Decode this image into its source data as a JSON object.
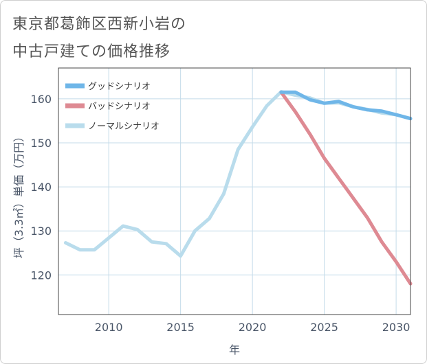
{
  "title": {
    "line1": "東京都葛飾区西新小岩の",
    "line2": "中古戸建ての価格推移"
  },
  "colors": {
    "good": "#6fb6e8",
    "bad": "#de8a93",
    "normal": "#b9dcec",
    "grid": "#c4dbe9",
    "frame": "#444444"
  },
  "chart_data": {
    "type": "line",
    "xlabel": "年",
    "ylabel": "坪（3.3㎡）単価（万円）",
    "xlim": [
      2006.5,
      2031
    ],
    "ylim": [
      111,
      167
    ],
    "xticks": [
      2010,
      2015,
      2020,
      2025,
      2030
    ],
    "yticks": [
      120,
      130,
      140,
      150,
      160
    ],
    "legend_position": "top-left",
    "series": [
      {
        "key": "good",
        "name": "グッドシナリオ",
        "x": [
          2022,
          2023,
          2024,
          2025,
          2026,
          2027,
          2028,
          2029,
          2030,
          2031
        ],
        "y": [
          161.5,
          161.5,
          159.8,
          159.0,
          159.4,
          158.2,
          157.5,
          157.2,
          156.4,
          155.5
        ]
      },
      {
        "key": "bad",
        "name": "バッドシナリオ",
        "x": [
          2022,
          2023,
          2024,
          2025,
          2026,
          2027,
          2028,
          2029,
          2030,
          2031
        ],
        "y": [
          161.5,
          157.0,
          152.0,
          146.5,
          142.0,
          137.5,
          133.0,
          127.5,
          123.0,
          118.0
        ]
      },
      {
        "key": "normal",
        "name": "ノーマルシナリオ",
        "x": [
          2007,
          2008,
          2009,
          2010,
          2011,
          2012,
          2013,
          2014,
          2015,
          2016,
          2017,
          2018,
          2019,
          2020,
          2021,
          2022,
          2023,
          2024,
          2025,
          2026,
          2027,
          2028,
          2029,
          2030,
          2031
        ],
        "y": [
          127.3,
          125.7,
          125.7,
          128.4,
          131.1,
          130.3,
          127.5,
          127.1,
          124.3,
          130.0,
          132.8,
          138.4,
          148.5,
          153.6,
          158.4,
          161.6,
          160.8,
          160.2,
          159.0,
          159.1,
          158.2,
          157.6,
          156.8,
          156.4,
          155.5
        ]
      }
    ]
  }
}
